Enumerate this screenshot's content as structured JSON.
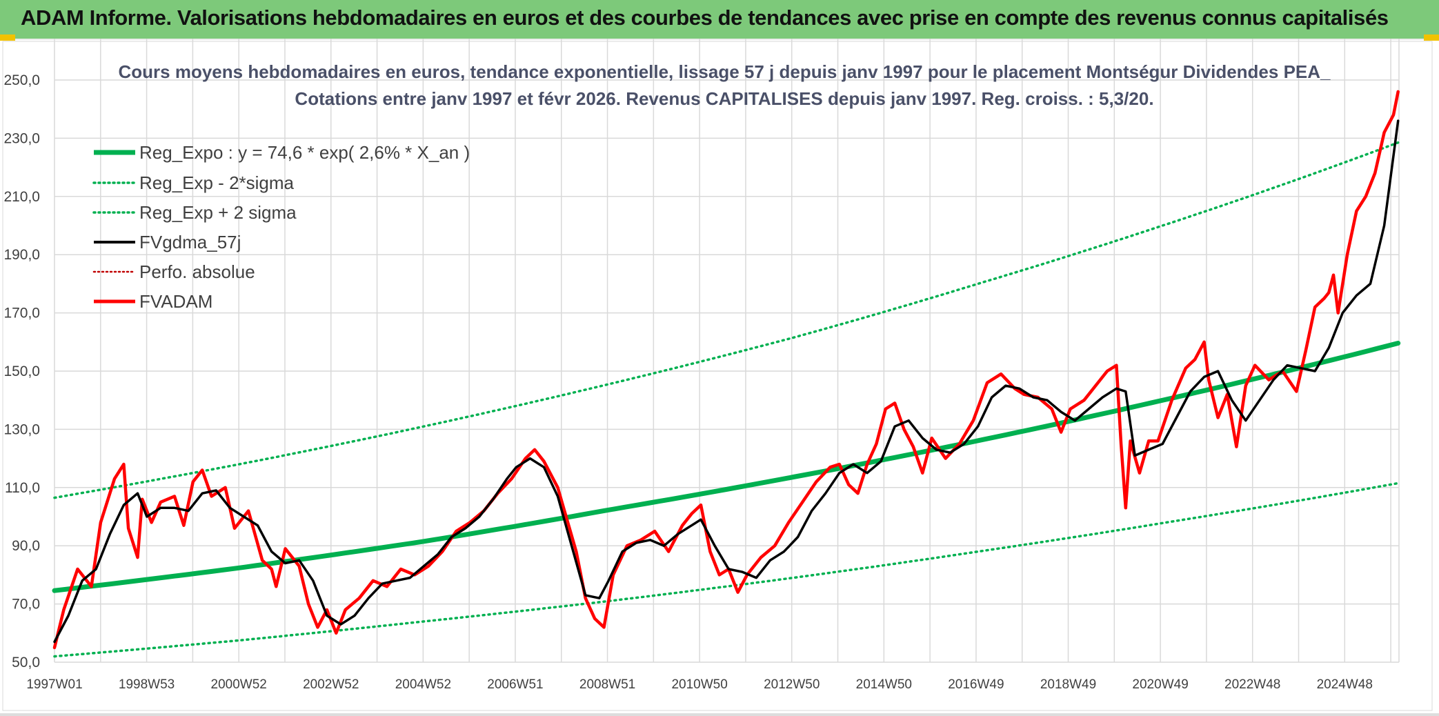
{
  "header": {
    "title": "ADAM Informe. Valorisations hebdomadaires en euros et des courbes de tendances avec prise en compte des revenus connus capitalisés"
  },
  "colors": {
    "banner": "#7dc97a",
    "trend": "#00b050",
    "smooth": "#000000",
    "price": "#ff0000",
    "grid": "#d9d9d9"
  },
  "chart_data": {
    "type": "line",
    "title_lines": [
      "Cours moyens hebdomadaires en euros, tendance exponentielle, lissage 57 j depuis janv 1997 pour le placement Montségur Dividendes PEA_",
      "Cotations entre janv 1997 et févr 2026. Revenus CAPITALISES depuis janv 1997. Reg. croiss. : 5,3/20."
    ],
    "x_unit": "year",
    "x_range": [
      1997.0,
      2026.12
    ],
    "ylim": [
      50,
      250
    ],
    "y_ticks": [
      "50,0",
      "70,0",
      "90,0",
      "110,0",
      "130,0",
      "150,0",
      "170,0",
      "190,0",
      "210,0",
      "230,0",
      "250,0"
    ],
    "x_ticks": [
      "1997W01",
      "1998W53",
      "2000W52",
      "2002W52",
      "2004W52",
      "2006W51",
      "2008W51",
      "2010W50",
      "2012W50",
      "2014W50",
      "2016W49",
      "2018W49",
      "2020W49",
      "2022W48",
      "2024W48"
    ],
    "grid": true,
    "legend": {
      "position": "top-left",
      "entries": [
        {
          "name": "Reg_Expo : y = 74,6 * exp( 2,6% *  X_an )",
          "color": "#00b050",
          "style": "solid-thick"
        },
        {
          "name": "Reg_Exp - 2*sigma",
          "color": "#00b050",
          "style": "dotted"
        },
        {
          "name": "Reg_Exp + 2 sigma",
          "color": "#00b050",
          "style": "dotted"
        },
        {
          "name": "FVgdma_57j",
          "color": "#000000",
          "style": "solid"
        },
        {
          "name": "Perfo. absolue",
          "color": "#c00000",
          "style": "dotted"
        },
        {
          "name": "FVADAM",
          "color": "#ff0000",
          "style": "solid-thick"
        }
      ]
    },
    "regression": {
      "a": 74.6,
      "rate": 0.026
    },
    "series": [
      {
        "name": "Reg_Expo : y = 74,6 * exp( 2,6% *  X_an )",
        "x": [
          1997.0,
          2001.0,
          2005.0,
          2009.0,
          2013.0,
          2017.0,
          2021.0,
          2026.1
        ],
        "values": [
          74.6,
          82.4,
          91.5,
          102.3,
          113.6,
          126.1,
          140.0,
          159.6
        ]
      },
      {
        "name": "Reg_Exp - 2*sigma",
        "x": [
          1997.0,
          2001.0,
          2005.0,
          2009.0,
          2013.0,
          2017.0,
          2021.0,
          2026.1
        ],
        "values": [
          52.0,
          57.5,
          64.0,
          71.0,
          79.0,
          88.0,
          97.8,
          111.5
        ]
      },
      {
        "name": "Reg_Exp + 2 sigma",
        "x": [
          1997.0,
          2001.0,
          2005.0,
          2009.0,
          2013.0,
          2017.0,
          2021.0,
          2026.1
        ],
        "values": [
          106.5,
          118.0,
          131.0,
          145.5,
          161.5,
          180.0,
          200.0,
          228.5
        ]
      },
      {
        "name": "FVgdma_57j",
        "x": [
          1997.0,
          1997.3,
          1997.6,
          1997.9,
          1998.2,
          1998.5,
          1998.8,
          1999.0,
          1999.3,
          1999.6,
          1999.9,
          2000.2,
          2000.5,
          2000.8,
          2001.1,
          2001.4,
          2001.7,
          2002.0,
          2002.3,
          2002.6,
          2002.9,
          2003.2,
          2003.5,
          2003.8,
          2004.1,
          2004.4,
          2004.7,
          2005.0,
          2005.3,
          2005.6,
          2005.9,
          2006.2,
          2006.5,
          2006.8,
          2007.0,
          2007.3,
          2007.6,
          2007.9,
          2008.2,
          2008.5,
          2008.8,
          2009.0,
          2009.3,
          2009.6,
          2009.9,
          2010.2,
          2010.5,
          2010.8,
          2011.0,
          2011.3,
          2011.6,
          2011.9,
          2012.2,
          2012.5,
          2012.8,
          2013.1,
          2013.4,
          2013.7,
          2014.0,
          2014.3,
          2014.6,
          2014.9,
          2015.2,
          2015.5,
          2015.8,
          2016.1,
          2016.4,
          2016.7,
          2017.0,
          2017.3,
          2017.6,
          2017.9,
          2018.2,
          2018.5,
          2018.8,
          2019.1,
          2019.4,
          2019.7,
          2020.0,
          2020.2,
          2020.4,
          2020.7,
          2021.0,
          2021.3,
          2021.6,
          2021.9,
          2022.2,
          2022.5,
          2022.8,
          2023.1,
          2023.4,
          2023.7,
          2024.0,
          2024.3,
          2024.6,
          2024.9,
          2025.2,
          2025.5,
          2025.8,
          2026.1
        ],
        "values": [
          57,
          66,
          78,
          82,
          94,
          104,
          108,
          100,
          103,
          103,
          102,
          108,
          109,
          103,
          100,
          97,
          88,
          84,
          85,
          78,
          66,
          63,
          66,
          72,
          77,
          78,
          79,
          83,
          87,
          93,
          96,
          100,
          106,
          113,
          117,
          120,
          117,
          107,
          90,
          73,
          72,
          78,
          88,
          91,
          92,
          90,
          94,
          97,
          99,
          90,
          82,
          81,
          79,
          85,
          88,
          93,
          102,
          108,
          115,
          118,
          115,
          119,
          131,
          133,
          127,
          123,
          122,
          125,
          131,
          141,
          145,
          144,
          141,
          140,
          136,
          133,
          137,
          141,
          144,
          143,
          121,
          123,
          125,
          134,
          143,
          148,
          150,
          140,
          133,
          140,
          147,
          152,
          151,
          150,
          158,
          170,
          176,
          180,
          200,
          236
        ]
      },
      {
        "name": "FVADAM",
        "x": [
          1997.0,
          1997.2,
          1997.5,
          1997.8,
          1998.0,
          1998.3,
          1998.5,
          1998.6,
          1998.8,
          1998.9,
          1999.1,
          1999.3,
          1999.6,
          1999.8,
          2000.0,
          2000.2,
          2000.4,
          2000.7,
          2000.9,
          2001.2,
          2001.5,
          2001.7,
          2001.8,
          2002.0,
          2002.3,
          2002.5,
          2002.7,
          2002.9,
          2003.1,
          2003.3,
          2003.6,
          2003.9,
          2004.2,
          2004.5,
          2004.8,
          2005.1,
          2005.4,
          2005.7,
          2006.0,
          2006.3,
          2006.6,
          2006.9,
          2007.2,
          2007.4,
          2007.6,
          2007.9,
          2008.1,
          2008.3,
          2008.5,
          2008.7,
          2008.9,
          2009.1,
          2009.4,
          2009.7,
          2010.0,
          2010.3,
          2010.6,
          2010.8,
          2011.0,
          2011.2,
          2011.4,
          2011.6,
          2011.8,
          2012.0,
          2012.3,
          2012.6,
          2012.9,
          2013.2,
          2013.5,
          2013.8,
          2014.0,
          2014.2,
          2014.4,
          2014.6,
          2014.8,
          2015.0,
          2015.2,
          2015.4,
          2015.6,
          2015.8,
          2016.0,
          2016.3,
          2016.6,
          2016.9,
          2017.2,
          2017.5,
          2017.8,
          2018.0,
          2018.3,
          2018.6,
          2018.8,
          2019.0,
          2019.3,
          2019.6,
          2019.8,
          2020.0,
          2020.1,
          2020.2,
          2020.3,
          2020.5,
          2020.7,
          2020.9,
          2021.2,
          2021.5,
          2021.7,
          2021.9,
          2022.0,
          2022.2,
          2022.4,
          2022.6,
          2022.8,
          2023.0,
          2023.3,
          2023.6,
          2023.9,
          2024.1,
          2024.3,
          2024.5,
          2024.6,
          2024.7,
          2024.8,
          2025.0,
          2025.2,
          2025.4,
          2025.6,
          2025.8,
          2026.0,
          2026.1
        ],
        "values": [
          55,
          68,
          82,
          76,
          98,
          113,
          118,
          96,
          86,
          106,
          98,
          105,
          107,
          97,
          112,
          116,
          107,
          110,
          96,
          102,
          85,
          82,
          76,
          89,
          83,
          70,
          62,
          68,
          60,
          68,
          72,
          78,
          76,
          82,
          80,
          83,
          88,
          95,
          98,
          102,
          108,
          113,
          120,
          123,
          119,
          110,
          99,
          88,
          72,
          65,
          62,
          80,
          90,
          92,
          95,
          88,
          97,
          101,
          104,
          88,
          80,
          82,
          74,
          80,
          86,
          90,
          98,
          105,
          112,
          117,
          118,
          111,
          108,
          118,
          125,
          137,
          139,
          130,
          124,
          115,
          127,
          120,
          125,
          133,
          146,
          149,
          144,
          142,
          141,
          137,
          129,
          137,
          140,
          146,
          150,
          152,
          125,
          103,
          126,
          115,
          126,
          126,
          140,
          151,
          154,
          160,
          147,
          134,
          142,
          124,
          145,
          152,
          147,
          150,
          143,
          157,
          172,
          175,
          177,
          183,
          170,
          190,
          205,
          210,
          218,
          232,
          238,
          246
        ]
      }
    ]
  }
}
